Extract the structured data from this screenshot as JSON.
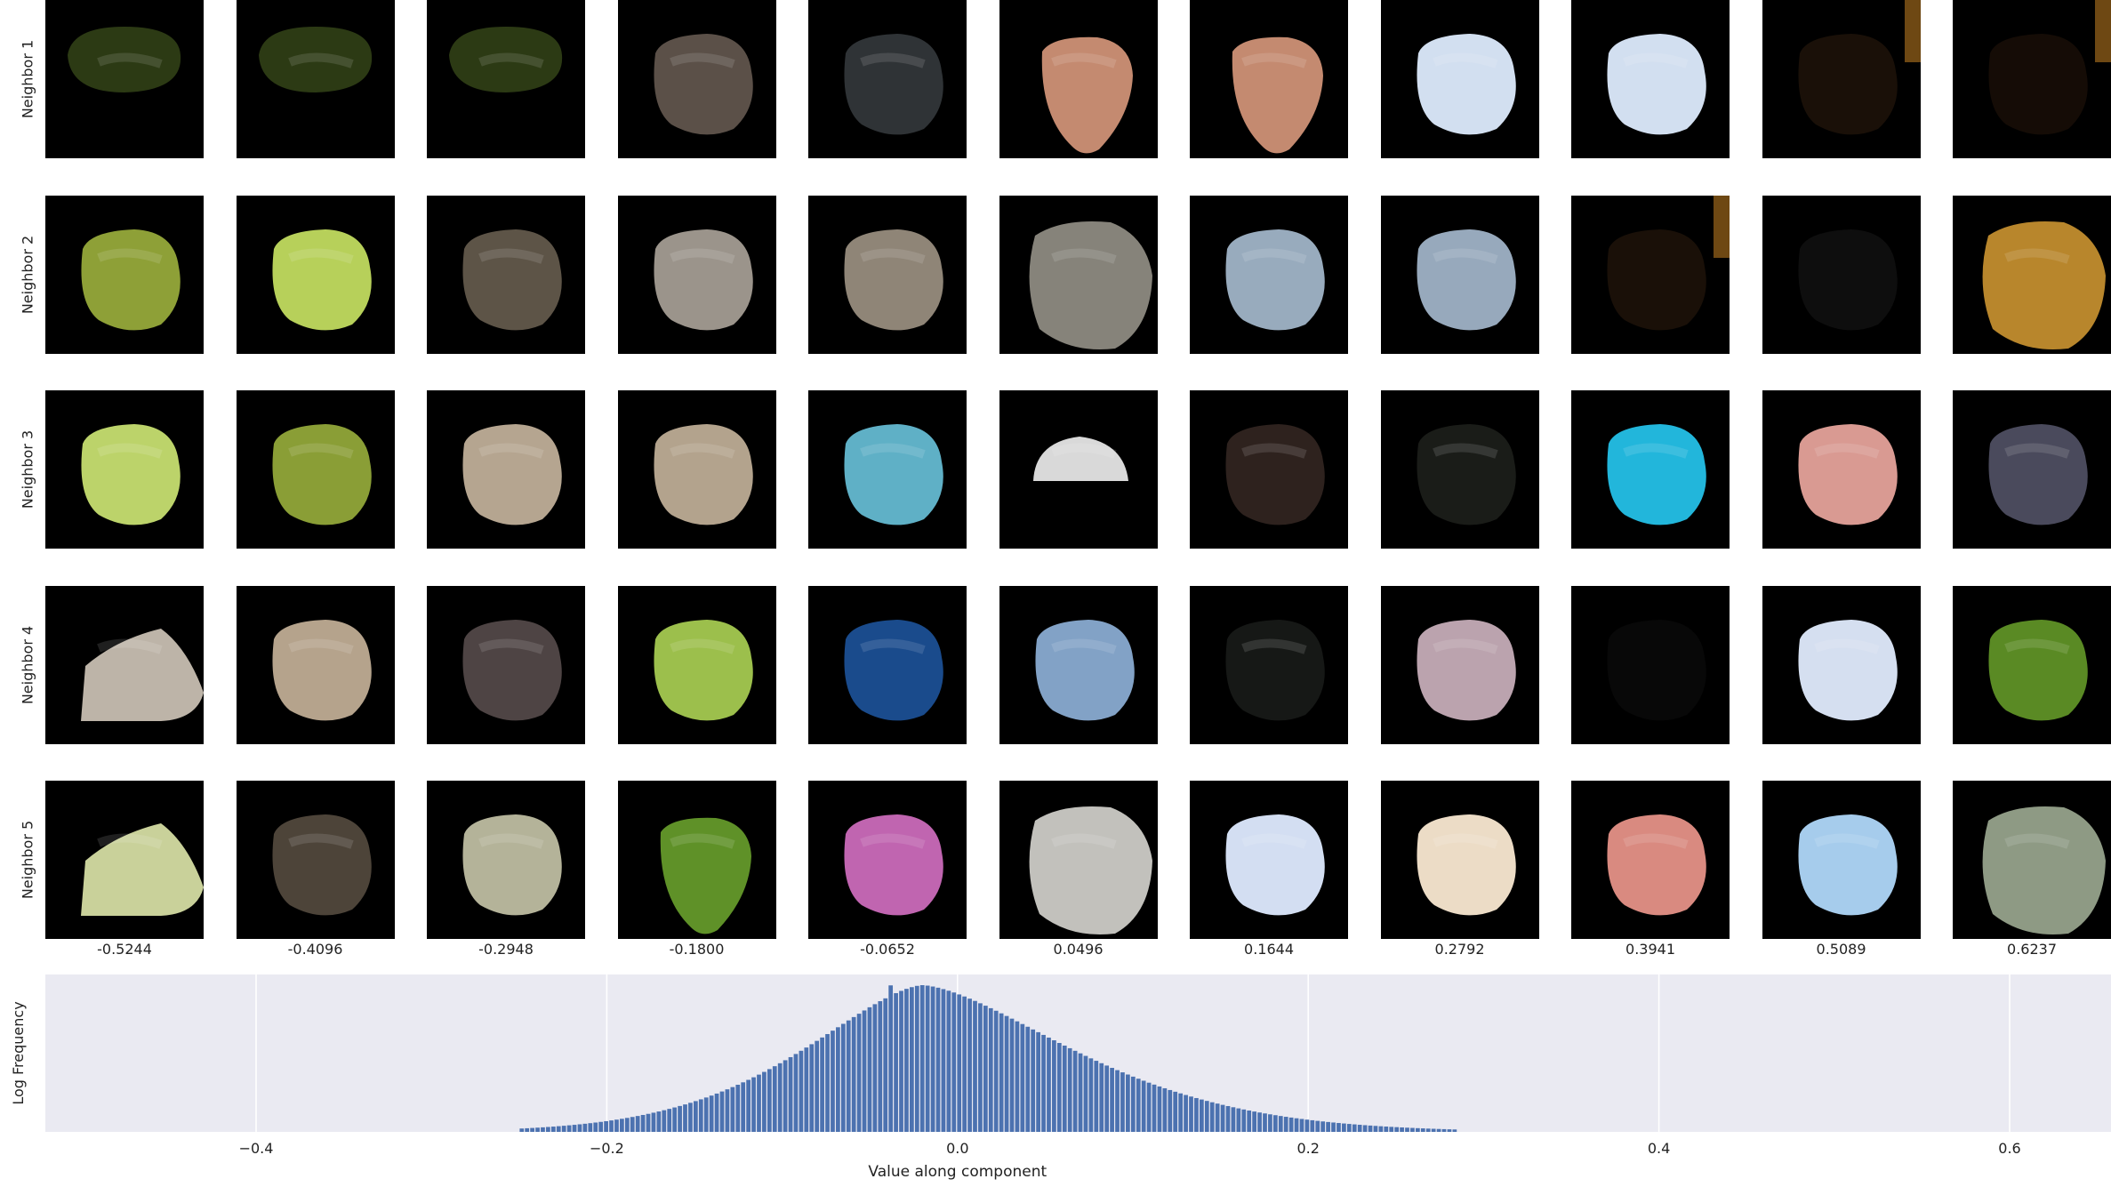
{
  "chart_data": [
    {
      "type": "image_grid",
      "row_labels": [
        "Neighbor 1",
        "Neighbor 2",
        "Neighbor 3",
        "Neighbor 4",
        "Neighbor 5"
      ],
      "column_labels": [
        "-0.5244",
        "-0.4096",
        "-0.2948",
        "-0.1800",
        "-0.0652",
        "0.0496",
        "0.1644",
        "0.2792",
        "0.3941",
        "0.5089",
        "0.6237"
      ],
      "cells": [
        [
          {
            "shape": "oval",
            "color": "#2c3a14"
          },
          {
            "shape": "oval",
            "color": "#2c3a14"
          },
          {
            "shape": "oval",
            "color": "#2c3a14"
          },
          {
            "shape": "blob",
            "color": "#5b5048"
          },
          {
            "shape": "blob",
            "color": "#2f3336"
          },
          {
            "shape": "leaf",
            "color": "#c48a70"
          },
          {
            "shape": "leaf",
            "color": "#c48a70"
          },
          {
            "shape": "blob",
            "color": "#d2dff0"
          },
          {
            "shape": "blob",
            "color": "#d2dff0"
          },
          {
            "shape": "glow",
            "color": "#1a1008"
          },
          {
            "shape": "glow",
            "color": "#150c06"
          }
        ],
        [
          {
            "shape": "blob",
            "color": "#8ea037"
          },
          {
            "shape": "blob",
            "color": "#b7d05a"
          },
          {
            "shape": "blob",
            "color": "#5d5447"
          },
          {
            "shape": "blob",
            "color": "#9b948b"
          },
          {
            "shape": "blob",
            "color": "#8f8577"
          },
          {
            "shape": "rock",
            "color": "#86837a"
          },
          {
            "shape": "blob",
            "color": "#98abbd"
          },
          {
            "shape": "blob",
            "color": "#97a9bc"
          },
          {
            "shape": "glow",
            "color": "#1a1008"
          },
          {
            "shape": "faint",
            "color": "#0e0e0e"
          },
          {
            "shape": "rock",
            "color": "#b8862c"
          }
        ],
        [
          {
            "shape": "blob",
            "color": "#bcd36a"
          },
          {
            "shape": "blob",
            "color": "#8a9e36"
          },
          {
            "shape": "blob",
            "color": "#b5a590"
          },
          {
            "shape": "blob",
            "color": "#b3a38d"
          },
          {
            "shape": "blob",
            "color": "#5fb0c6"
          },
          {
            "shape": "dome",
            "color": "#d9d9d9"
          },
          {
            "shape": "blob",
            "color": "#2e221e"
          },
          {
            "shape": "blob",
            "color": "#1a1c18"
          },
          {
            "shape": "blob",
            "color": "#22b6db"
          },
          {
            "shape": "blob",
            "color": "#d99a92"
          },
          {
            "shape": "blob",
            "color": "#4a4a5c"
          }
        ],
        [
          {
            "shape": "wedge",
            "color": "#bdb4a8"
          },
          {
            "shape": "blob",
            "color": "#b5a38c"
          },
          {
            "shape": "blob",
            "color": "#4e4444"
          },
          {
            "shape": "blob",
            "color": "#9cbf4c"
          },
          {
            "shape": "blob",
            "color": "#1a4b8c"
          },
          {
            "shape": "blob",
            "color": "#82a2c6"
          },
          {
            "shape": "blob",
            "color": "#161816"
          },
          {
            "shape": "blob",
            "color": "#bba3ae"
          },
          {
            "shape": "faint",
            "color": "#080808"
          },
          {
            "shape": "blob",
            "color": "#d5dff0"
          },
          {
            "shape": "blob",
            "color": "#5a8a24"
          }
        ],
        [
          {
            "shape": "wedge",
            "color": "#c9d19a"
          },
          {
            "shape": "blob",
            "color": "#4d4439"
          },
          {
            "shape": "blob",
            "color": "#b4b399"
          },
          {
            "shape": "leaf",
            "color": "#5f9128"
          },
          {
            "shape": "blob",
            "color": "#c065b0"
          },
          {
            "shape": "rock",
            "color": "#c2c1bc"
          },
          {
            "shape": "blob",
            "color": "#d3def2"
          },
          {
            "shape": "blob",
            "color": "#ecdcc6"
          },
          {
            "shape": "blob",
            "color": "#d98a80"
          },
          {
            "shape": "blob",
            "color": "#a6ccec"
          },
          {
            "shape": "rock",
            "color": "#8e9a84"
          }
        ]
      ]
    },
    {
      "type": "bar",
      "xlabel": "Value along component",
      "ylabel": "Log Frequency",
      "xlim": [
        -0.52,
        0.6
      ],
      "xticks": [
        -0.4,
        -0.2,
        0.0,
        0.2,
        0.4,
        0.6
      ],
      "xtick_labels": [
        "−0.4",
        "−0.2",
        "0.0",
        "0.2",
        "0.4",
        "0.6"
      ],
      "grid": true,
      "bar_color": "#4c72b0",
      "background": "#eaeaf2",
      "peak_x": -0.02,
      "spike_x": -0.037,
      "support": [
        -0.25,
        0.285
      ]
    }
  ]
}
